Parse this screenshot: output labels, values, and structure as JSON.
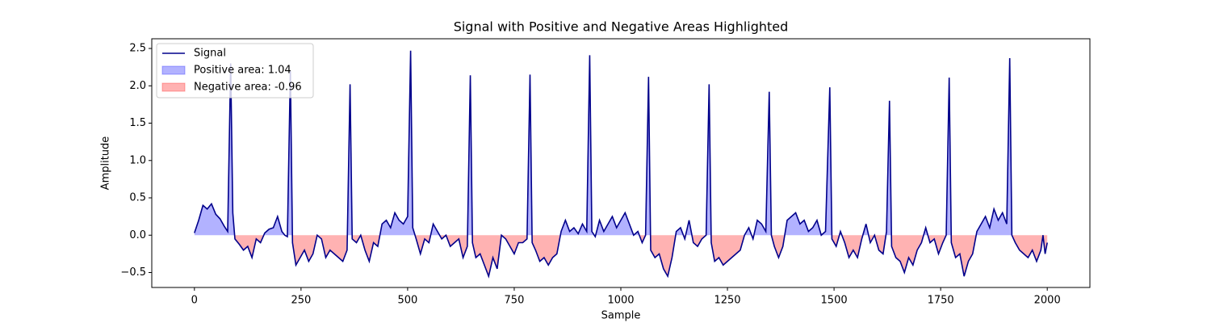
{
  "chart_data": {
    "type": "line",
    "title": "Signal with Positive and Negative Areas Highlighted",
    "x_label": "Sample",
    "y_label": "Amplitude",
    "xlim": [
      -100,
      2100
    ],
    "ylim": [
      -0.7,
      2.63
    ],
    "xticks": [
      0,
      250,
      500,
      750,
      1000,
      1250,
      1500,
      1750,
      2000
    ],
    "yticks": [
      {
        "value": -0.5,
        "label": "−0.5"
      },
      {
        "value": 0,
        "label": "0.0"
      },
      {
        "value": 0.5,
        "label": "0.5"
      },
      {
        "value": 1,
        "label": "1.0"
      },
      {
        "value": 1.5,
        "label": "1.5"
      },
      {
        "value": 2,
        "label": "2.0"
      },
      {
        "value": 2.5,
        "label": "2.5"
      }
    ],
    "legend_position": "upper left",
    "x": [
      0,
      10,
      20,
      30,
      40,
      50,
      60,
      70,
      78,
      85,
      90,
      95,
      105,
      115,
      125,
      135,
      145,
      155,
      165,
      175,
      185,
      195,
      205,
      212,
      218,
      225,
      230,
      238,
      248,
      258,
      268,
      278,
      288,
      298,
      308,
      318,
      328,
      338,
      348,
      358,
      365,
      370,
      380,
      390,
      400,
      410,
      420,
      430,
      440,
      450,
      460,
      470,
      480,
      490,
      500,
      507,
      512,
      520,
      530,
      540,
      550,
      560,
      570,
      580,
      590,
      600,
      610,
      620,
      630,
      640,
      647,
      652,
      660,
      670,
      680,
      690,
      700,
      710,
      720,
      730,
      740,
      750,
      760,
      770,
      780,
      787,
      792,
      800,
      810,
      820,
      830,
      840,
      850,
      860,
      870,
      880,
      890,
      900,
      910,
      920,
      927,
      932,
      940,
      950,
      960,
      970,
      980,
      990,
      1000,
      1010,
      1020,
      1030,
      1040,
      1050,
      1058,
      1065,
      1070,
      1080,
      1090,
      1100,
      1110,
      1120,
      1130,
      1140,
      1150,
      1160,
      1170,
      1180,
      1190,
      1200,
      1207,
      1212,
      1220,
      1230,
      1240,
      1250,
      1260,
      1270,
      1280,
      1290,
      1300,
      1310,
      1320,
      1330,
      1340,
      1348,
      1353,
      1360,
      1370,
      1380,
      1390,
      1400,
      1410,
      1420,
      1430,
      1440,
      1450,
      1460,
      1470,
      1480,
      1490,
      1495,
      1505,
      1515,
      1525,
      1535,
      1545,
      1555,
      1565,
      1575,
      1585,
      1595,
      1605,
      1615,
      1623,
      1630,
      1635,
      1645,
      1655,
      1665,
      1675,
      1685,
      1695,
      1705,
      1715,
      1725,
      1735,
      1745,
      1755,
      1763,
      1770,
      1775,
      1785,
      1795,
      1805,
      1815,
      1825,
      1835,
      1845,
      1855,
      1865,
      1875,
      1885,
      1895,
      1905,
      1912,
      1917,
      1925,
      1935,
      1945,
      1955,
      1965,
      1975,
      1985,
      1990,
      1995,
      2000
    ],
    "series": [
      {
        "name": "Signal",
        "color": "#00008b",
        "values": [
          0.03,
          0.2,
          0.4,
          0.35,
          0.42,
          0.28,
          0.22,
          0.12,
          0.05,
          2.3,
          0.3,
          -0.05,
          -0.12,
          -0.2,
          -0.15,
          -0.3,
          -0.05,
          -0.1,
          0.03,
          0.08,
          0.1,
          0.25,
          0.05,
          0.0,
          -0.02,
          2.2,
          -0.1,
          -0.4,
          -0.3,
          -0.2,
          -0.35,
          -0.25,
          0.0,
          -0.05,
          -0.3,
          -0.2,
          -0.25,
          -0.3,
          -0.35,
          -0.2,
          2.02,
          -0.05,
          -0.1,
          0.0,
          -0.2,
          -0.35,
          -0.1,
          -0.15,
          0.15,
          0.2,
          0.1,
          0.3,
          0.2,
          0.15,
          0.25,
          2.47,
          0.1,
          -0.05,
          -0.25,
          -0.05,
          -0.1,
          0.15,
          0.05,
          -0.05,
          0.0,
          -0.15,
          -0.1,
          -0.05,
          -0.3,
          -0.15,
          2.14,
          -0.1,
          -0.3,
          -0.25,
          -0.4,
          -0.55,
          -0.3,
          -0.45,
          0.0,
          -0.05,
          -0.15,
          -0.25,
          -0.1,
          -0.1,
          -0.05,
          2.15,
          -0.1,
          -0.2,
          -0.35,
          -0.3,
          -0.4,
          -0.3,
          -0.25,
          0.05,
          0.2,
          0.05,
          0.1,
          0.02,
          0.15,
          0.05,
          2.41,
          0.05,
          -0.02,
          0.2,
          0.05,
          0.15,
          0.25,
          0.1,
          0.2,
          0.3,
          0.15,
          0.0,
          0.05,
          -0.1,
          0.0,
          2.12,
          -0.2,
          -0.3,
          -0.25,
          -0.45,
          -0.55,
          -0.3,
          0.05,
          0.1,
          -0.05,
          0.2,
          -0.1,
          -0.15,
          -0.05,
          0.0,
          2.02,
          -0.1,
          -0.35,
          -0.3,
          -0.4,
          -0.35,
          -0.3,
          -0.25,
          -0.2,
          0.0,
          0.1,
          -0.05,
          0.2,
          0.15,
          0.05,
          1.92,
          0.0,
          -0.15,
          -0.3,
          -0.15,
          0.2,
          0.25,
          0.3,
          0.15,
          0.2,
          0.05,
          0.1,
          0.2,
          0.0,
          0.05,
          1.98,
          -0.05,
          -0.15,
          0.05,
          -0.1,
          -0.3,
          -0.2,
          -0.3,
          -0.05,
          0.15,
          -0.1,
          0.0,
          -0.2,
          -0.25,
          0.05,
          1.8,
          -0.15,
          -0.3,
          -0.35,
          -0.5,
          -0.3,
          -0.4,
          -0.2,
          -0.1,
          0.1,
          -0.1,
          -0.05,
          -0.25,
          -0.1,
          0.0,
          2.11,
          -0.1,
          -0.3,
          -0.25,
          -0.55,
          -0.35,
          -0.25,
          0.05,
          0.15,
          0.25,
          0.1,
          0.35,
          0.2,
          0.3,
          0.15,
          2.37,
          0.0,
          -0.1,
          -0.2,
          -0.25,
          -0.3,
          -0.2,
          -0.35,
          -0.2,
          0.0,
          -0.25,
          -0.1
        ]
      }
    ],
    "fills": [
      {
        "name": "Positive area: 1.04",
        "color": "#0000ff"
      },
      {
        "name": "Negative area: -0.96",
        "color": "#ff0000"
      }
    ]
  }
}
